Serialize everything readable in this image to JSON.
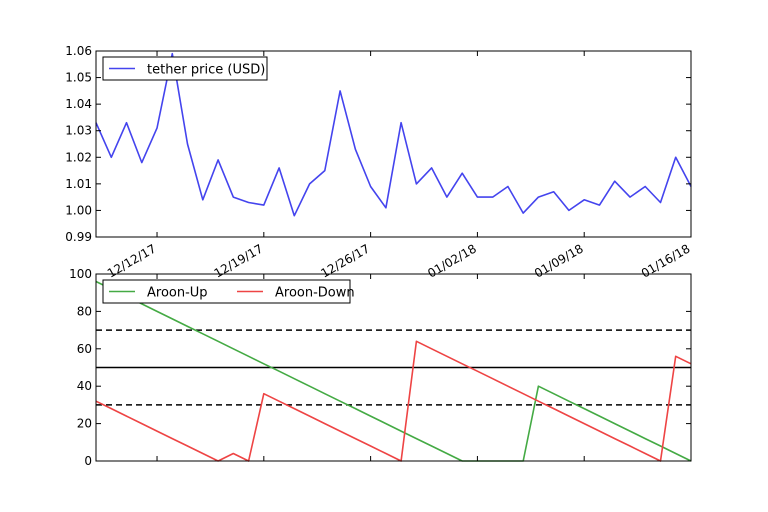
{
  "chart_data": [
    {
      "type": "line",
      "x": [
        "2017-12-08",
        "2017-12-09",
        "2017-12-10",
        "2017-12-11",
        "2017-12-12",
        "2017-12-13",
        "2017-12-14",
        "2017-12-15",
        "2017-12-16",
        "2017-12-17",
        "2017-12-18",
        "2017-12-19",
        "2017-12-20",
        "2017-12-21",
        "2017-12-22",
        "2017-12-23",
        "2017-12-24",
        "2017-12-25",
        "2017-12-26",
        "2017-12-27",
        "2017-12-28",
        "2017-12-29",
        "2017-12-30",
        "2017-12-31",
        "2018-01-01",
        "2018-01-02",
        "2018-01-03",
        "2018-01-04",
        "2018-01-05",
        "2018-01-06",
        "2018-01-07",
        "2018-01-08",
        "2018-01-09",
        "2018-01-10",
        "2018-01-11",
        "2018-01-12",
        "2018-01-13",
        "2018-01-14",
        "2018-01-15",
        "2018-01-16"
      ],
      "series": [
        {
          "name": "tether price (USD)",
          "color": "#4444ee",
          "values": [
            1.033,
            1.02,
            1.033,
            1.018,
            1.031,
            1.059,
            1.025,
            1.004,
            1.019,
            1.005,
            1.003,
            1.002,
            1.016,
            0.998,
            1.01,
            1.015,
            1.045,
            1.023,
            1.009,
            1.001,
            1.033,
            1.01,
            1.016,
            1.005,
            1.014,
            1.005,
            1.005,
            1.009,
            0.999,
            1.005,
            1.007,
            1.0,
            1.004,
            1.002,
            1.011,
            1.005,
            1.009,
            1.003,
            1.02,
            1.009
          ]
        }
      ],
      "ylim": [
        0.99,
        1.06
      ],
      "yticks": [
        "0.99",
        "1.00",
        "1.01",
        "1.02",
        "1.03",
        "1.04",
        "1.05",
        "1.06"
      ],
      "xticks": [
        {
          "date": "2017-12-12",
          "label": "12/12/17"
        },
        {
          "date": "2017-12-19",
          "label": "12/19/17"
        },
        {
          "date": "2017-12-26",
          "label": "12/26/17"
        },
        {
          "date": "2018-01-02",
          "label": "01/02/18"
        },
        {
          "date": "2018-01-09",
          "label": "01/09/18"
        },
        {
          "date": "2018-01-16",
          "label": "01/16/18"
        }
      ],
      "legend": "top-left"
    },
    {
      "type": "line",
      "x": [
        "2017-12-08",
        "2017-12-09",
        "2017-12-10",
        "2017-12-11",
        "2017-12-12",
        "2017-12-13",
        "2017-12-14",
        "2017-12-15",
        "2017-12-16",
        "2017-12-17",
        "2017-12-18",
        "2017-12-19",
        "2017-12-20",
        "2017-12-21",
        "2017-12-22",
        "2017-12-23",
        "2017-12-24",
        "2017-12-25",
        "2017-12-26",
        "2017-12-27",
        "2017-12-28",
        "2017-12-29",
        "2017-12-30",
        "2017-12-31",
        "2018-01-01",
        "2018-01-02",
        "2018-01-03",
        "2018-01-04",
        "2018-01-05",
        "2018-01-06",
        "2018-01-07",
        "2018-01-08",
        "2018-01-09",
        "2018-01-10",
        "2018-01-11",
        "2018-01-12",
        "2018-01-13",
        "2018-01-14",
        "2018-01-15",
        "2018-01-16"
      ],
      "series": [
        {
          "name": "Aroon-Up",
          "color": "#44aa44",
          "values": [
            96,
            92,
            88,
            84,
            80,
            76,
            72,
            68,
            64,
            60,
            56,
            52,
            48,
            44,
            40,
            36,
            32,
            28,
            24,
            20,
            16,
            12,
            8,
            4,
            0,
            0,
            0,
            0,
            0,
            40,
            36,
            32,
            28,
            24,
            20,
            16,
            12,
            8,
            4,
            0
          ]
        },
        {
          "name": "Aroon-Down",
          "color": "#ee4444",
          "values": [
            32,
            28,
            24,
            20,
            16,
            12,
            8,
            4,
            0,
            4,
            0,
            36,
            32,
            28,
            24,
            20,
            16,
            12,
            8,
            4,
            0,
            64,
            60,
            56,
            52,
            48,
            44,
            40,
            36,
            32,
            28,
            24,
            20,
            16,
            12,
            8,
            4,
            0,
            56,
            52
          ]
        }
      ],
      "reference_lines": [
        {
          "y": 70,
          "style": "dashed"
        },
        {
          "y": 50,
          "style": "solid"
        },
        {
          "y": 30,
          "style": "dashed"
        }
      ],
      "ylim": [
        0,
        100
      ],
      "yticks": [
        "0",
        "20",
        "40",
        "60",
        "80",
        "100"
      ],
      "legend": "top-left"
    }
  ]
}
